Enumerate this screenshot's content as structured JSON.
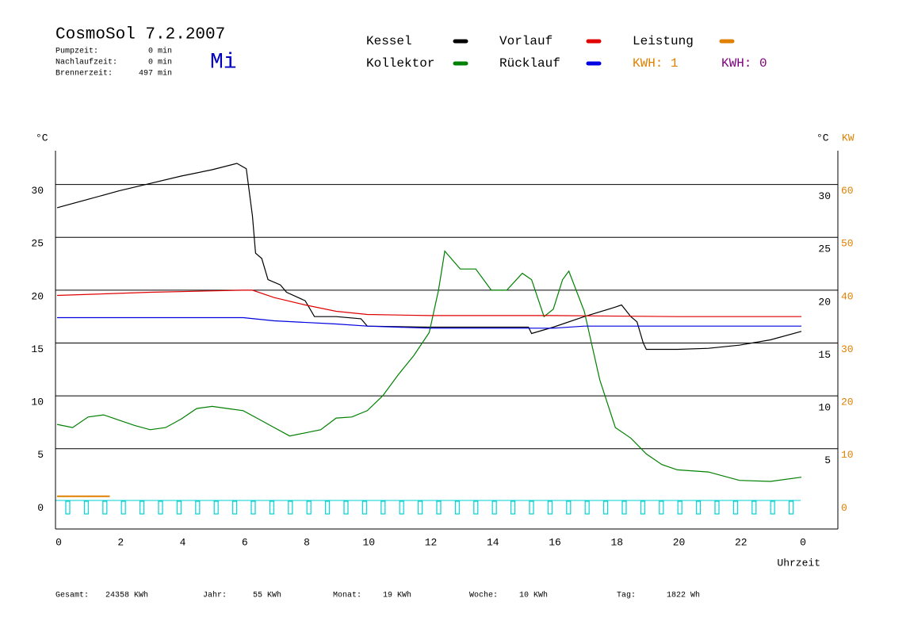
{
  "header": {
    "title": "CosmoSol 7.2.2007",
    "day": "Mi",
    "stats": [
      {
        "label": "Pumpzeit:",
        "value": "0 min"
      },
      {
        "label": "Nachlaufzeit:",
        "value": "0 min"
      },
      {
        "label": "Brennerzeit:",
        "value": "497 min"
      }
    ],
    "kwh": [
      {
        "text": "KWH: 1",
        "color": "#e08000"
      },
      {
        "text": "KWH: 0",
        "color": "#800080"
      }
    ]
  },
  "chart_data": {
    "type": "line",
    "xlabel": "Uhrzeit",
    "ylabel": "°C",
    "y2label_c": "°C",
    "y2label": "KW",
    "xlim": [
      0,
      24
    ],
    "xticks": [
      0,
      2,
      4,
      6,
      8,
      10,
      12,
      14,
      16,
      18,
      20,
      22,
      {
        "value": 24,
        "label": "0"
      }
    ],
    "ylim": [
      -2.6,
      33.2
    ],
    "yticks": [
      0,
      5,
      10,
      15,
      20,
      25,
      30
    ],
    "yticks_right": [
      5,
      10,
      15,
      20,
      25,
      30
    ],
    "y2lim": [
      -5.2,
      66.4
    ],
    "y2ticks": [
      0,
      10,
      20,
      30,
      40,
      50,
      60
    ],
    "grid": true,
    "series": [
      {
        "name": "Kessel",
        "color": "#000000",
        "x": [
          0,
          1,
          2,
          3,
          4,
          5,
          5.8,
          6.1,
          6.3,
          6.4,
          6.6,
          6.8,
          7.2,
          7.4,
          8,
          8.3,
          9,
          9.8,
          10,
          12,
          15.2,
          15.3,
          16,
          17,
          18,
          18.2,
          18.5,
          18.7,
          18.9,
          19,
          20,
          21,
          22,
          23,
          24
        ],
        "values": [
          27.8,
          28.6,
          29.4,
          30.1,
          30.8,
          31.4,
          32,
          31.5,
          27,
          23.5,
          23,
          21,
          20.5,
          19.8,
          19,
          17.5,
          17.5,
          17.3,
          16.6,
          16.5,
          16.5,
          15.9,
          16.5,
          17.5,
          18.4,
          18.6,
          17.5,
          17,
          15,
          14.4,
          14.4,
          14.5,
          14.8,
          15.3,
          16.1
        ]
      },
      {
        "name": "Kollektor",
        "color": "#008000",
        "x": [
          0,
          0.5,
          1,
          1.5,
          2,
          2.5,
          3,
          3.5,
          4,
          4.5,
          5,
          5.5,
          6,
          6.5,
          7,
          7.5,
          8,
          8.5,
          9,
          9.5,
          10,
          10.5,
          11,
          11.5,
          12,
          12.3,
          12.5,
          13,
          13.5,
          14,
          14.5,
          15,
          15.3,
          15.7,
          16,
          16.3,
          16.5,
          17,
          17.5,
          18,
          18.5,
          19,
          19.5,
          20,
          21,
          22,
          23,
          24
        ],
        "values": [
          7.3,
          7,
          8,
          8.2,
          7.7,
          7.2,
          6.8,
          7,
          7.8,
          8.8,
          9,
          8.8,
          8.6,
          7.8,
          7,
          6.2,
          6.5,
          6.8,
          7.9,
          8,
          8.6,
          10,
          12,
          13.8,
          16,
          20,
          23.7,
          22,
          22,
          20,
          20,
          21.6,
          21,
          17.5,
          18.2,
          21,
          21.8,
          18,
          11.5,
          7,
          6,
          4.5,
          3.5,
          3,
          2.8,
          2,
          1.9,
          2.3
        ]
      },
      {
        "name": "Vorlauf",
        "color": "#e00000",
        "x": [
          0,
          3,
          6,
          6.3,
          7,
          8,
          9,
          10,
          12,
          16,
          20,
          24
        ],
        "values": [
          19.5,
          19.8,
          20,
          20,
          19.3,
          18.6,
          18,
          17.7,
          17.6,
          17.6,
          17.5,
          17.5
        ]
      },
      {
        "name": "Rücklauf",
        "color": "#0000e0",
        "x": [
          0,
          6,
          7,
          9,
          10,
          12,
          16,
          17,
          18,
          24
        ],
        "values": [
          17.4,
          17.4,
          17.1,
          16.8,
          16.6,
          16.4,
          16.4,
          16.6,
          16.6,
          16.6
        ]
      },
      {
        "name": "Leistung",
        "color": "#e08000",
        "axis": "y2",
        "x": [
          0,
          1.7
        ],
        "values": [
          1,
          1
        ]
      }
    ]
  },
  "footer": [
    {
      "label": "Gesamt:",
      "value": "24358 KWh"
    },
    {
      "label": "Jahr:",
      "value": "55 KWh"
    },
    {
      "label": "Monat:",
      "value": "19 KWh"
    },
    {
      "label": "Woche:",
      "value": "10 KWh"
    },
    {
      "label": "Tag:",
      "value": "1822 Wh"
    }
  ]
}
